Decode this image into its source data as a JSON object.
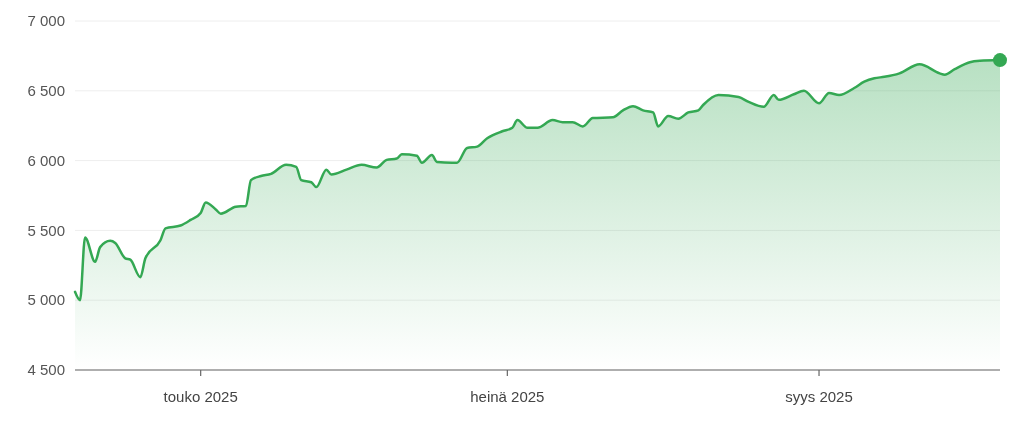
{
  "chart_data": {
    "type": "area",
    "x": [
      "2025-04-06",
      "2025-04-07",
      "2025-04-08",
      "2025-04-10",
      "2025-04-11",
      "2025-04-13",
      "2025-04-14",
      "2025-04-16",
      "2025-04-17",
      "2025-04-19",
      "2025-04-20",
      "2025-04-23",
      "2025-04-24",
      "2025-04-27",
      "2025-04-29",
      "2025-05-01",
      "2025-05-02",
      "2025-05-04",
      "2025-05-05",
      "2025-05-08",
      "2025-05-10",
      "2025-05-11",
      "2025-05-13",
      "2025-05-15",
      "2025-05-18",
      "2025-05-20",
      "2025-05-21",
      "2025-05-23",
      "2025-05-24",
      "2025-05-26",
      "2025-05-27",
      "2025-05-30",
      "2025-06-02",
      "2025-06-05",
      "2025-06-07",
      "2025-06-09",
      "2025-06-10",
      "2025-06-13",
      "2025-06-14",
      "2025-06-16",
      "2025-06-17",
      "2025-06-20",
      "2025-06-21",
      "2025-06-23",
      "2025-06-25",
      "2025-06-27",
      "2025-06-30",
      "2025-07-02",
      "2025-07-03",
      "2025-07-05",
      "2025-07-07",
      "2025-07-10",
      "2025-07-12",
      "2025-07-14",
      "2025-07-16",
      "2025-07-18",
      "2025-07-22",
      "2025-07-24",
      "2025-07-26",
      "2025-07-28",
      "2025-07-30",
      "2025-07-31",
      "2025-08-02",
      "2025-08-04",
      "2025-08-06",
      "2025-08-08",
      "2025-08-09",
      "2025-08-12",
      "2025-08-16",
      "2025-08-18",
      "2025-08-21",
      "2025-08-23",
      "2025-08-24",
      "2025-08-27",
      "2025-08-29",
      "2025-09-01",
      "2025-09-03",
      "2025-09-05",
      "2025-09-08",
      "2025-09-10",
      "2025-09-12",
      "2025-09-14",
      "2025-09-17",
      "2025-09-21",
      "2025-09-25",
      "2025-09-26",
      "2025-09-28",
      "2025-10-01",
      "2025-10-03",
      "2025-10-07"
    ],
    "series": [
      {
        "color": "#34a853",
        "values": [
          5060,
          5000,
          5450,
          5275,
          5380,
          5425,
          5410,
          5300,
          5290,
          5165,
          5300,
          5430,
          5515,
          5535,
          5575,
          5625,
          5700,
          5650,
          5620,
          5670,
          5675,
          5860,
          5890,
          5905,
          5970,
          5955,
          5860,
          5845,
          5810,
          5935,
          5900,
          5935,
          5970,
          5950,
          6005,
          6015,
          6045,
          6035,
          5985,
          6040,
          5990,
          5985,
          5985,
          6090,
          6100,
          6160,
          6210,
          6235,
          6290,
          6235,
          6235,
          6290,
          6275,
          6275,
          6245,
          6305,
          6310,
          6360,
          6390,
          6360,
          6345,
          6245,
          6320,
          6300,
          6345,
          6360,
          6400,
          6470,
          6455,
          6420,
          6385,
          6470,
          6435,
          6475,
          6500,
          6410,
          6485,
          6470,
          6520,
          6565,
          6590,
          6600,
          6625,
          6690,
          6625,
          6615,
          6655,
          6705,
          6715,
          6720
        ]
      }
    ],
    "xlim": [
      "2025-04-06",
      "2025-10-07"
    ],
    "xticks": [
      {
        "value": "2025-05-01",
        "label": "touko 2025"
      },
      {
        "value": "2025-07-01",
        "label": "heinä 2025"
      },
      {
        "value": "2025-09-01",
        "label": "syys 2025"
      }
    ],
    "ylim": [
      4500,
      7000
    ],
    "yticks": [
      {
        "value": 4500,
        "label": "4 500"
      },
      {
        "value": 5000,
        "label": "5 000"
      },
      {
        "value": 5500,
        "label": "5 500"
      },
      {
        "value": 6000,
        "label": "6 000"
      },
      {
        "value": 6500,
        "label": "6 500"
      },
      {
        "value": 7000,
        "label": "7 000"
      }
    ],
    "grid": "y"
  }
}
